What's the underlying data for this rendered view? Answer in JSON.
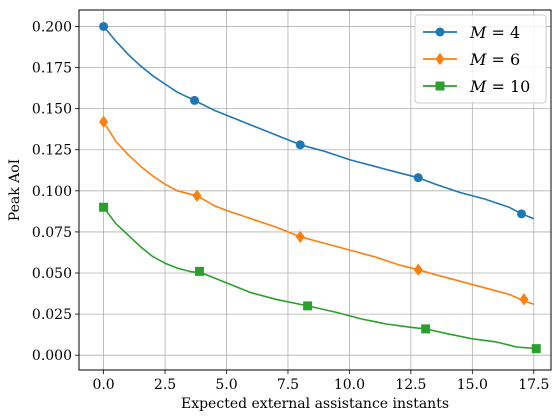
{
  "chart_data": {
    "type": "line",
    "xlabel": "Expected external assistance instants",
    "ylabel": "Peak AoI",
    "xlim": [
      -1.0,
      18.2
    ],
    "ylim": [
      -0.009,
      0.21
    ],
    "xticks": [
      0.0,
      2.5,
      5.0,
      7.5,
      10.0,
      12.5,
      15.0,
      17.5
    ],
    "xtick_labels": [
      "0.0",
      "2.5",
      "5.0",
      "7.5",
      "10.0",
      "12.5",
      "15.0",
      "17.5"
    ],
    "yticks": [
      0.0,
      0.025,
      0.05,
      0.075,
      0.1,
      0.125,
      0.15,
      0.175,
      0.2
    ],
    "ytick_labels": [
      "0.000",
      "0.025",
      "0.050",
      "0.075",
      "0.100",
      "0.125",
      "0.150",
      "0.175",
      "0.200"
    ],
    "grid": true,
    "legend_position": "top-right",
    "series": [
      {
        "name": "M = 4",
        "legend_var": "M",
        "legend_eq": " = 4",
        "color": "#1f77b4",
        "marker": "circle",
        "x": [
          0.0,
          0.5,
          1.0,
          1.5,
          2.0,
          2.5,
          3.0,
          3.7,
          4.5,
          5.0,
          5.5,
          6.0,
          7.0,
          8.0,
          9.0,
          10.0,
          11.0,
          12.0,
          12.8,
          13.5,
          14.5,
          15.5,
          16.5,
          17.0,
          17.5
        ],
        "y": [
          0.2,
          0.191,
          0.183,
          0.176,
          0.17,
          0.165,
          0.16,
          0.155,
          0.149,
          0.146,
          0.143,
          0.14,
          0.134,
          0.128,
          0.124,
          0.119,
          0.115,
          0.111,
          0.108,
          0.104,
          0.099,
          0.095,
          0.09,
          0.086,
          0.083
        ],
        "marker_x": [
          0.0,
          3.7,
          8.0,
          12.8,
          17.0
        ],
        "marker_y": [
          0.2,
          0.155,
          0.128,
          0.108,
          0.086
        ]
      },
      {
        "name": "M = 6",
        "legend_var": "M",
        "legend_eq": " = 6",
        "color": "#ff7f0e",
        "marker": "diamond",
        "x": [
          0.0,
          0.5,
          1.0,
          1.5,
          2.0,
          2.5,
          3.0,
          3.8,
          4.5,
          5.0,
          6.0,
          7.0,
          8.0,
          9.0,
          10.0,
          11.0,
          12.0,
          12.8,
          13.5,
          14.5,
          15.5,
          16.5,
          17.1,
          17.5
        ],
        "y": [
          0.142,
          0.13,
          0.122,
          0.115,
          0.109,
          0.104,
          0.1,
          0.097,
          0.091,
          0.088,
          0.083,
          0.078,
          0.072,
          0.068,
          0.064,
          0.06,
          0.055,
          0.052,
          0.049,
          0.045,
          0.041,
          0.037,
          0.033,
          0.031
        ],
        "marker_x": [
          0.0,
          3.8,
          8.0,
          12.8,
          17.1
        ],
        "marker_y": [
          0.142,
          0.097,
          0.072,
          0.052,
          0.034
        ]
      },
      {
        "name": "M = 10",
        "legend_var": "M",
        "legend_eq": " = 10",
        "color": "#2ca02c",
        "marker": "square",
        "x": [
          0.0,
          0.5,
          1.0,
          1.5,
          2.0,
          2.5,
          3.0,
          3.5,
          4.0,
          5.0,
          6.0,
          7.0,
          8.3,
          9.5,
          10.5,
          11.5,
          12.5,
          13.1,
          14.0,
          15.0,
          16.0,
          16.8,
          17.6
        ],
        "y": [
          0.09,
          0.08,
          0.073,
          0.066,
          0.06,
          0.056,
          0.053,
          0.051,
          0.05,
          0.044,
          0.038,
          0.034,
          0.03,
          0.026,
          0.022,
          0.019,
          0.017,
          0.016,
          0.013,
          0.01,
          0.008,
          0.005,
          0.004
        ],
        "marker_x": [
          0.0,
          3.9,
          8.3,
          13.1,
          17.6
        ],
        "marker_y": [
          0.09,
          0.051,
          0.03,
          0.016,
          0.004
        ]
      }
    ]
  }
}
